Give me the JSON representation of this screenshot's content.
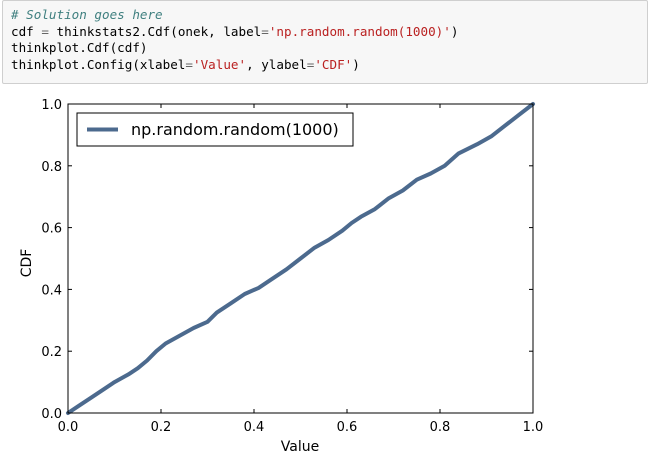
{
  "code_cell": {
    "lines": [
      [
        {
          "t": "# Solution goes here",
          "c": "comment"
        }
      ],
      [
        {
          "t": "cdf ",
          "c": ""
        },
        {
          "t": "=",
          "c": "op"
        },
        {
          "t": " thinkstats2.Cdf(onek, label",
          "c": ""
        },
        {
          "t": "=",
          "c": "op"
        },
        {
          "t": "'np.random.random(1000)'",
          "c": "str"
        },
        {
          "t": ")",
          "c": ""
        }
      ],
      [
        {
          "t": "thinkplot.Cdf(cdf)",
          "c": ""
        }
      ],
      [
        {
          "t": "thinkplot.Config(xlabel",
          "c": ""
        },
        {
          "t": "=",
          "c": "op"
        },
        {
          "t": "'Value'",
          "c": "str"
        },
        {
          "t": ", ylabel",
          "c": ""
        },
        {
          "t": "=",
          "c": "op"
        },
        {
          "t": "'CDF'",
          "c": "str"
        },
        {
          "t": ")",
          "c": ""
        }
      ]
    ]
  },
  "chart_data": {
    "type": "line",
    "title": "",
    "xlabel": "Value",
    "ylabel": "CDF",
    "xlim": [
      0.0,
      1.0
    ],
    "ylim": [
      0.0,
      1.0
    ],
    "xticks": [
      "0.0",
      "0.2",
      "0.4",
      "0.6",
      "0.8",
      "1.0"
    ],
    "yticks": [
      "0.0",
      "0.2",
      "0.4",
      "0.6",
      "0.8",
      "1.0"
    ],
    "grid": false,
    "legend": "top-left",
    "line_color": "#4c6a8e",
    "series": [
      {
        "name": "np.random.random(1000)",
        "x": [
          0.0,
          0.02,
          0.05,
          0.08,
          0.1,
          0.13,
          0.15,
          0.17,
          0.19,
          0.21,
          0.24,
          0.27,
          0.3,
          0.32,
          0.35,
          0.38,
          0.41,
          0.44,
          0.47,
          0.5,
          0.53,
          0.56,
          0.59,
          0.61,
          0.63,
          0.66,
          0.69,
          0.72,
          0.75,
          0.78,
          0.81,
          0.84,
          0.86,
          0.88,
          0.91,
          0.94,
          0.97,
          1.0
        ],
        "y": [
          0.0,
          0.02,
          0.05,
          0.08,
          0.1,
          0.125,
          0.145,
          0.17,
          0.2,
          0.225,
          0.25,
          0.275,
          0.295,
          0.325,
          0.355,
          0.385,
          0.405,
          0.435,
          0.465,
          0.5,
          0.535,
          0.56,
          0.59,
          0.615,
          0.635,
          0.66,
          0.695,
          0.72,
          0.755,
          0.775,
          0.8,
          0.84,
          0.855,
          0.87,
          0.895,
          0.93,
          0.965,
          1.0
        ]
      }
    ]
  }
}
